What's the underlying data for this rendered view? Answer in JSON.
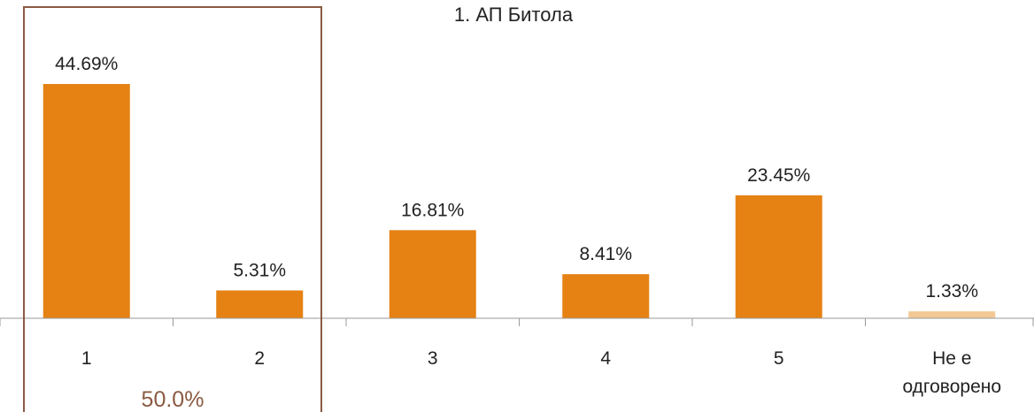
{
  "chart_data": {
    "type": "bar",
    "title": "1. АП Битола",
    "categories": [
      "1",
      "2",
      "3",
      "4",
      "5",
      "Не е одговорено"
    ],
    "values": [
      44.69,
      5.31,
      16.81,
      8.41,
      23.45,
      1.33
    ],
    "value_labels": [
      "44.69%",
      "5.31%",
      "16.81%",
      "8.41%",
      "23.45%",
      "1.33%"
    ],
    "ylim": [
      0,
      50
    ],
    "grid": false,
    "legend": "none",
    "highlight_group": {
      "categories": [
        "1",
        "2"
      ],
      "label": "50.0%",
      "color": "#8B5A42"
    },
    "colors": {
      "bar": "#E58213",
      "bar_faded": "#F2C994",
      "axis": "#9A9A9A",
      "text": "#222222"
    }
  }
}
